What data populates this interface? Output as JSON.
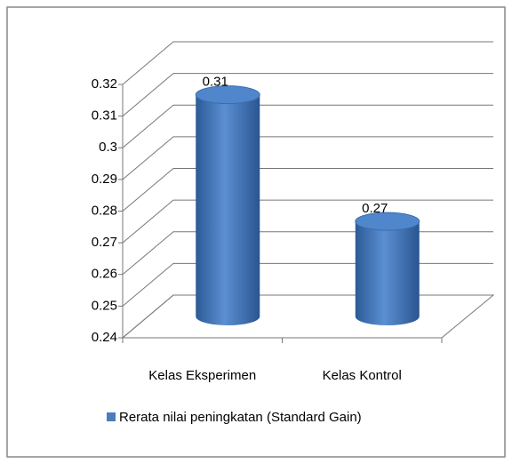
{
  "chart_data": {
    "type": "bar3d",
    "categories": [
      "Kelas Eksperimen",
      "Kelas Kontrol"
    ],
    "series": [
      {
        "name": "Rerata nilai peningkatan (Standard Gain)",
        "color": "#4a7ebb",
        "values": [
          0.31,
          0.27
        ]
      }
    ],
    "ylim": [
      0.24,
      0.32
    ],
    "yticks": [
      0.24,
      0.25,
      0.26,
      0.27,
      0.28,
      0.29,
      0.3,
      0.31,
      0.32
    ],
    "grid": true,
    "legend": "bottom"
  }
}
